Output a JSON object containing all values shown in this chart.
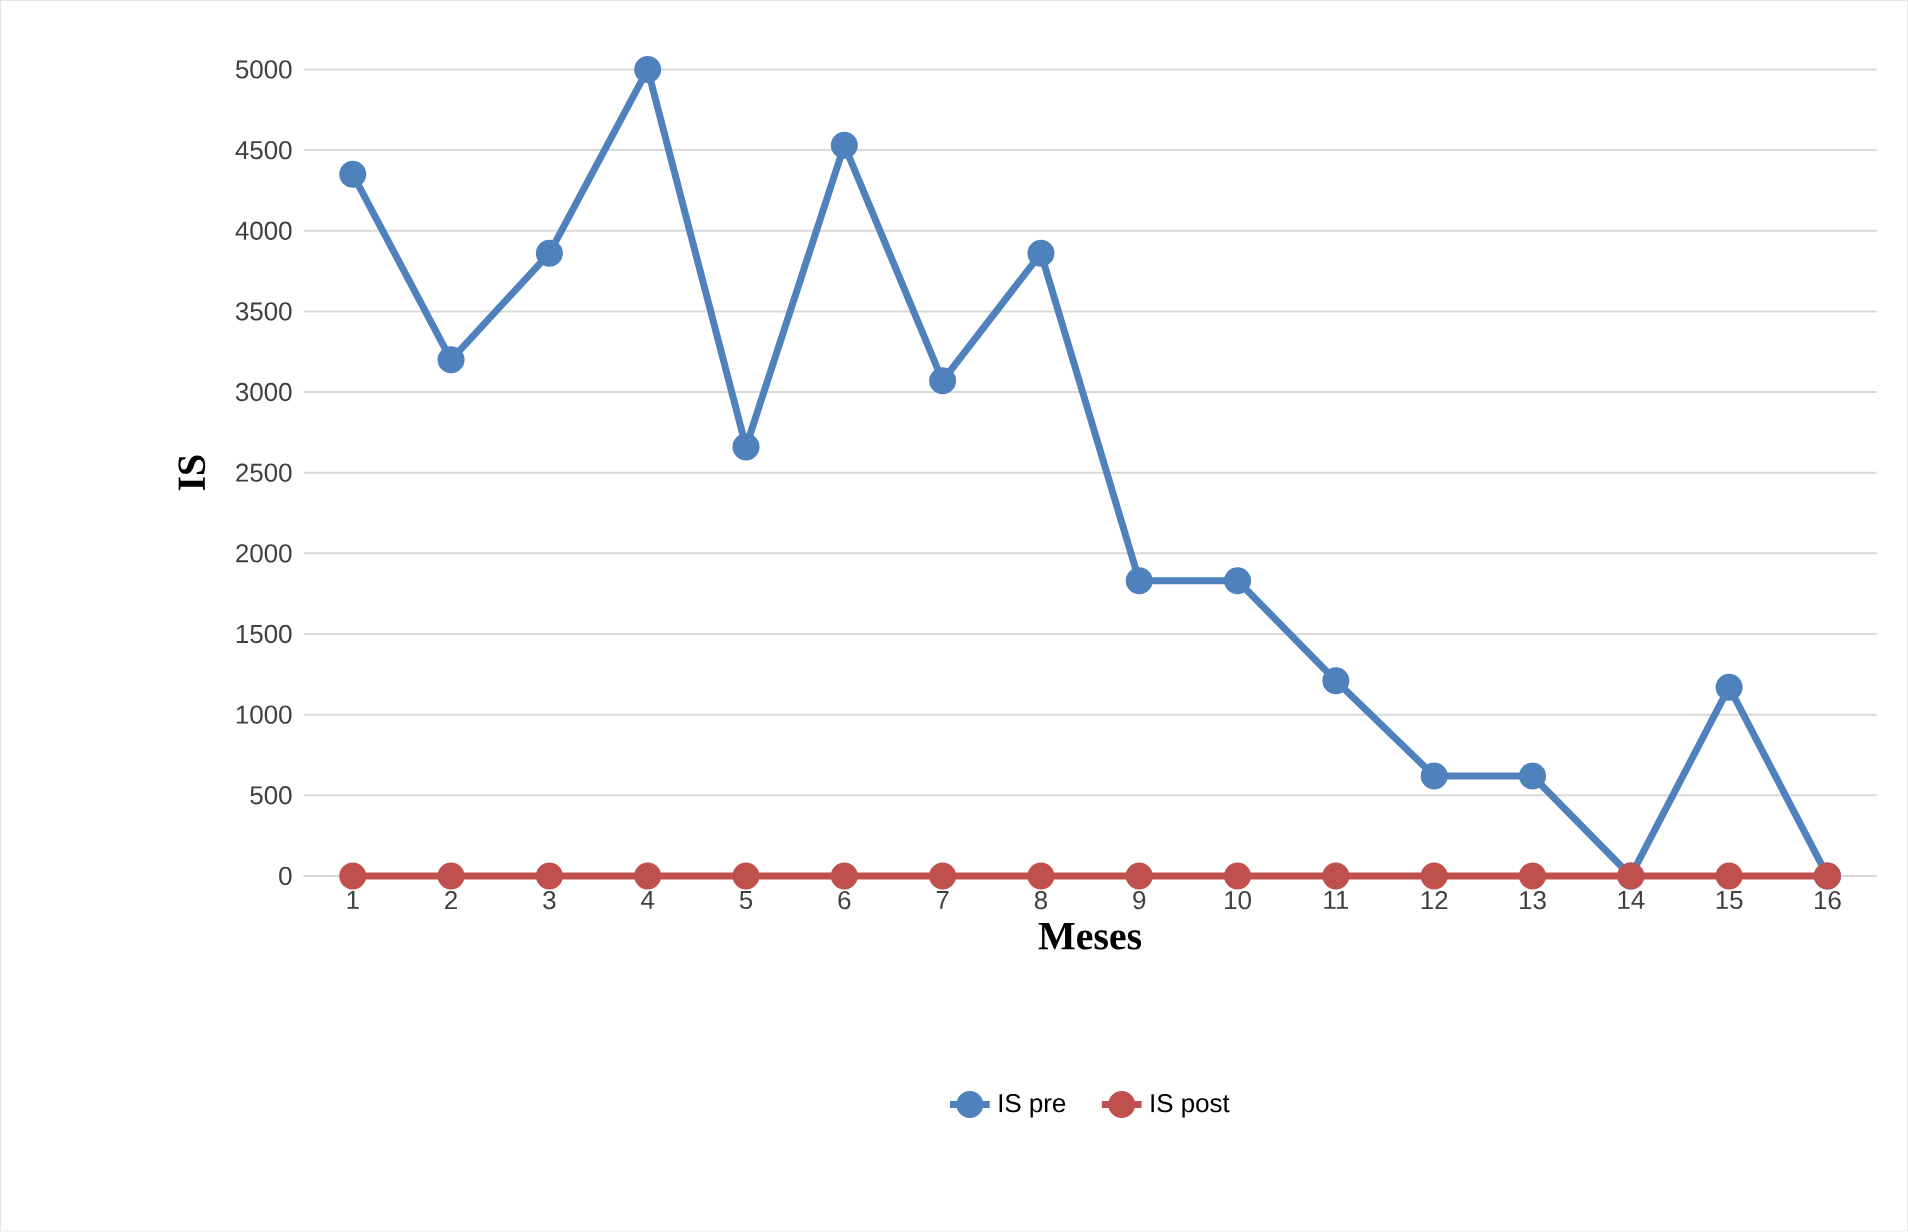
{
  "chart_data": {
    "type": "line",
    "xlabel": "Meses",
    "ylabel": "IS",
    "categories": [
      "1",
      "2",
      "3",
      "4",
      "5",
      "6",
      "7",
      "8",
      "9",
      "10",
      "11",
      "12",
      "13",
      "14",
      "15",
      "16"
    ],
    "series": [
      {
        "name": "IS pre",
        "color": "#4f81bd",
        "values": [
          4350,
          3200,
          3860,
          5000,
          2660,
          4530,
          3070,
          3860,
          1830,
          1830,
          1210,
          620,
          620,
          0,
          1170,
          0
        ]
      },
      {
        "name": "IS post",
        "color": "#c0504d",
        "values": [
          0,
          0,
          0,
          0,
          0,
          0,
          0,
          0,
          0,
          0,
          0,
          0,
          0,
          0,
          0,
          0
        ]
      }
    ],
    "ylim": [
      0,
      5000
    ],
    "yticks": [
      0,
      500,
      1000,
      1500,
      2000,
      2500,
      3000,
      3500,
      4000,
      4500,
      5000
    ],
    "grid": "y",
    "legend": "bottom",
    "marker": "circle",
    "line_style": "solid"
  }
}
